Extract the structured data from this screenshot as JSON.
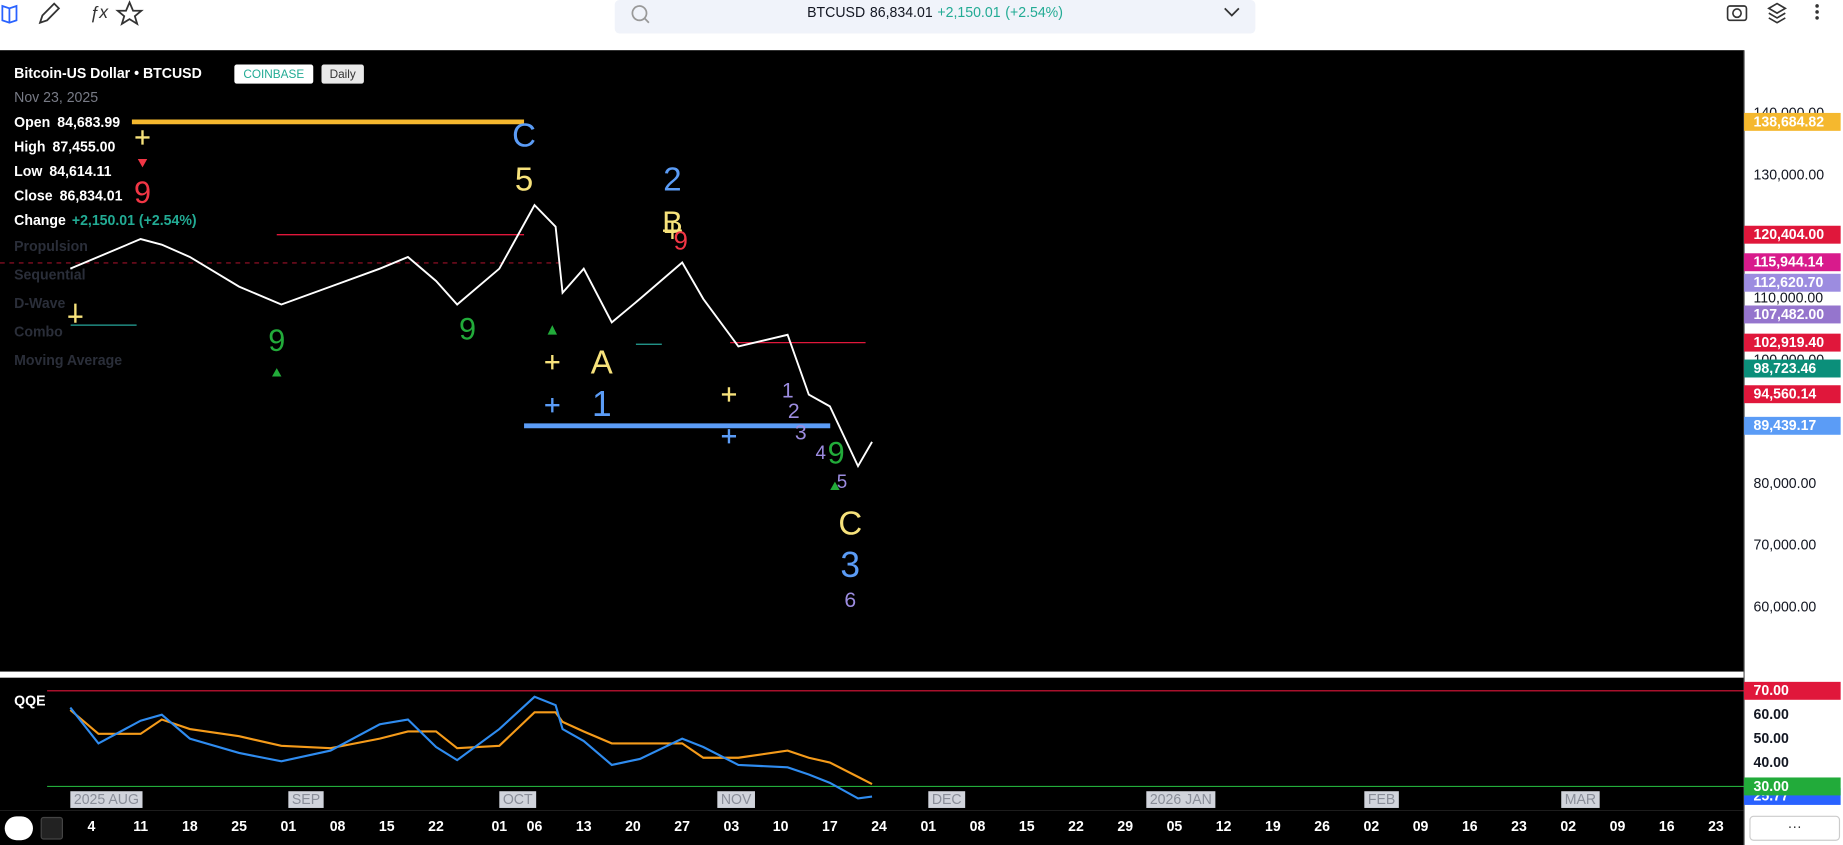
{
  "toolbar": {
    "symbol": "BTCUSD",
    "price": "86,834.01",
    "change": "+2,150.01",
    "change_pct": "(+2.54%)"
  },
  "legend": {
    "title": "Bitcoin-US Dollar • BTCUSD",
    "exchange": "COINBASE",
    "interval": "Daily",
    "date": "Nov 23, 2025",
    "rows": [
      {
        "label": "Open",
        "value": "84,683.99"
      },
      {
        "label": "High",
        "value": "87,455.00"
      },
      {
        "label": "Low",
        "value": "84,614.11"
      },
      {
        "label": "Close",
        "value": "86,834.01"
      }
    ],
    "change_label": "Change",
    "change_value": "+2,150.01 (+2.54%)",
    "indicators": [
      "Propulsion",
      "Sequential",
      "D-Wave",
      "Combo",
      "Moving Average"
    ]
  },
  "chart_data": [
    {
      "type": "line",
      "x": [
        "2025-08-01",
        "2025-08-11",
        "2025-08-14",
        "2025-08-18",
        "2025-08-25",
        "2025-08-31",
        "2025-09-07",
        "2025-09-14",
        "2025-09-18",
        "2025-09-22",
        "2025-09-25",
        "2025-10-01",
        "2025-10-06",
        "2025-10-09",
        "2025-10-10",
        "2025-10-13",
        "2025-10-17",
        "2025-10-21",
        "2025-10-27",
        "2025-10-30",
        "2025-11-04",
        "2025-11-11",
        "2025-11-14",
        "2025-11-17",
        "2025-11-21",
        "2025-11-23"
      ],
      "series": [
        {
          "color": "#ffffff",
          "values": [
            114900,
            119700,
            118800,
            116800,
            112000,
            109100,
            112000,
            114900,
            116800,
            112900,
            109100,
            114900,
            125200,
            121700,
            111000,
            114900,
            106200,
            110000,
            115900,
            110000,
            102300,
            104200,
            94500,
            92600,
            82900,
            86834.01
          ]
        }
      ],
      "xlim": [
        "2025-07-22",
        "2026-03-27"
      ],
      "xticks": [
        {
          "value": "2025-08-04",
          "label": "4"
        },
        {
          "value": "2025-08-11",
          "label": "11"
        },
        {
          "value": "2025-08-18",
          "label": "18"
        },
        {
          "value": "2025-08-25",
          "label": "25"
        },
        {
          "value": "2025-09-01",
          "label": "01"
        },
        {
          "value": "2025-09-08",
          "label": "08"
        },
        {
          "value": "2025-09-15",
          "label": "15"
        },
        {
          "value": "2025-09-22",
          "label": "22"
        },
        {
          "value": "2025-10-01",
          "label": "01"
        },
        {
          "value": "2025-10-06",
          "label": "06"
        },
        {
          "value": "2025-10-13",
          "label": "13"
        },
        {
          "value": "2025-10-20",
          "label": "20"
        },
        {
          "value": "2025-10-27",
          "label": "27"
        },
        {
          "value": "2025-11-03",
          "label": "03"
        },
        {
          "value": "2025-11-10",
          "label": "10"
        },
        {
          "value": "2025-11-17",
          "label": "17"
        },
        {
          "value": "2025-11-24",
          "label": "24"
        },
        {
          "value": "2025-12-01",
          "label": "01"
        },
        {
          "value": "2025-12-08",
          "label": "08"
        },
        {
          "value": "2025-12-15",
          "label": "15"
        },
        {
          "value": "2025-12-22",
          "label": "22"
        },
        {
          "value": "2025-12-29",
          "label": "29"
        },
        {
          "value": "2026-01-05",
          "label": "05"
        },
        {
          "value": "2026-01-12",
          "label": "12"
        },
        {
          "value": "2026-01-19",
          "label": "19"
        },
        {
          "value": "2026-01-26",
          "label": "26"
        },
        {
          "value": "2026-02-02",
          "label": "02"
        },
        {
          "value": "2026-02-09",
          "label": "09"
        },
        {
          "value": "2026-02-16",
          "label": "16"
        },
        {
          "value": "2026-02-23",
          "label": "23"
        },
        {
          "value": "2026-03-02",
          "label": "02"
        },
        {
          "value": "2026-03-09",
          "label": "09"
        },
        {
          "value": "2026-03-16",
          "label": "16"
        },
        {
          "value": "2026-03-23",
          "label": "23"
        }
      ],
      "month_labels": [
        {
          "value": "2025-08-01",
          "label": "2025 AUG"
        },
        {
          "value": "2025-09-01",
          "label": "SEP"
        },
        {
          "value": "2025-10-01",
          "label": "OCT"
        },
        {
          "value": "2025-11-01",
          "label": "NOV"
        },
        {
          "value": "2025-12-01",
          "label": "DEC"
        },
        {
          "value": "2026-01-01",
          "label": "2026 JAN"
        },
        {
          "value": "2026-02-01",
          "label": "FEB"
        },
        {
          "value": "2026-03-01",
          "label": "MAR"
        }
      ],
      "ylim": [
        49600,
        150300
      ],
      "yticks": [
        {
          "value": 60000,
          "label": "60,000.00"
        },
        {
          "value": 70000,
          "label": "70,000.00"
        },
        {
          "value": 80000,
          "label": "80,000.00"
        },
        {
          "value": 100000,
          "label": "100,000.00"
        },
        {
          "value": 110000,
          "label": "110,000.00"
        },
        {
          "value": 130000,
          "label": "130,000.00"
        },
        {
          "value": 140000,
          "label": "140,000.00"
        }
      ],
      "price_labels": [
        {
          "value": 138684.82,
          "label": "138,684.82",
          "color": "#f5b82e"
        },
        {
          "value": 120404.0,
          "label": "120,404.00",
          "color": "#e0173b"
        },
        {
          "value": 115944.14,
          "label": "115,944.14",
          "color": "#d81b8c"
        },
        {
          "value": 112620.7,
          "label": "112,620.70",
          "color": "#9c8ce0"
        },
        {
          "value": 107482.0,
          "label": "107,482.00",
          "color": "#9575cd"
        },
        {
          "value": 102919.4,
          "label": "102,919.40",
          "color": "#e0173b"
        },
        {
          "value": 98723.46,
          "label": "98,723.46",
          "color": "#0b8f7a"
        },
        {
          "value": 94560.14,
          "label": "94,560.14",
          "color": "#e0173b"
        },
        {
          "value": 89439.17,
          "label": "89,439.17",
          "color": "#5b9cf6"
        }
      ],
      "annotations": [
        {
          "text": "C",
          "color": "#5b9cf6"
        },
        {
          "text": "5",
          "color": "#f7e27b"
        },
        {
          "text": "2",
          "color": "#5b9cf6"
        },
        {
          "text": "B",
          "color": "#f7e27b"
        },
        {
          "text": "9",
          "color": "#f23645"
        },
        {
          "text": "A",
          "color": "#f7e27b"
        },
        {
          "text": "1",
          "color": "#5b9cf6"
        },
        {
          "text": "C",
          "color": "#f7e27b"
        },
        {
          "text": "3",
          "color": "#5b9cf6"
        },
        {
          "text": "6",
          "color": "#9c8ce0"
        },
        {
          "text": "9",
          "color": "#f23645"
        },
        {
          "text": "9",
          "color": "#22ab3a"
        },
        {
          "text": "9",
          "color": "#22ab3a"
        },
        {
          "text": "9",
          "color": "#22ab3a"
        },
        {
          "text": "1",
          "color": "#9c8ce0"
        },
        {
          "text": "2",
          "color": "#9c8ce0"
        },
        {
          "text": "3",
          "color": "#9c8ce0"
        },
        {
          "text": "4",
          "color": "#9c8ce0"
        },
        {
          "text": "5",
          "color": "#9c8ce0"
        }
      ]
    },
    {
      "type": "line",
      "title": "QQE",
      "x": [
        "2025-08-01",
        "2025-08-05",
        "2025-08-11",
        "2025-08-14",
        "2025-08-18",
        "2025-08-25",
        "2025-08-31",
        "2025-09-07",
        "2025-09-14",
        "2025-09-18",
        "2025-09-22",
        "2025-09-25",
        "2025-10-01",
        "2025-10-06",
        "2025-10-09",
        "2025-10-10",
        "2025-10-13",
        "2025-10-17",
        "2025-10-21",
        "2025-10-27",
        "2025-10-30",
        "2025-11-04",
        "2025-11-11",
        "2025-11-14",
        "2025-11-17",
        "2025-11-21",
        "2025-11-23"
      ],
      "series": [
        {
          "color": "#f59b1a",
          "values": [
            62,
            52,
            52,
            58,
            54,
            51,
            47,
            46,
            50,
            53,
            53,
            46,
            47,
            61,
            61,
            57,
            53,
            48,
            48,
            48,
            42,
            42,
            45,
            42,
            40,
            34,
            31
          ]
        },
        {
          "color": "#2f8cf0",
          "values": [
            63,
            48,
            57.5,
            60,
            50,
            44,
            40.5,
            45,
            56,
            58,
            46.5,
            41,
            54,
            67.5,
            64,
            54,
            49,
            39,
            41.5,
            50,
            46.5,
            39,
            38,
            35,
            31.5,
            25,
            25.77
          ]
        }
      ],
      "last_label": {
        "value": 25.77,
        "label": "25.77",
        "color": "#2962ff"
      },
      "ylim": [
        20,
        75.5
      ],
      "yticks": [
        {
          "value": 30,
          "label": "30.00"
        },
        {
          "value": 40,
          "label": "40.00"
        },
        {
          "value": 50,
          "label": "50.00"
        },
        {
          "value": 60,
          "label": "60.00"
        },
        {
          "value": 70,
          "label": "70.00"
        }
      ],
      "ref_lines": [
        {
          "value": 70,
          "color": "#e0173b"
        },
        {
          "value": 30,
          "color": "#22ab3a"
        }
      ]
    }
  ]
}
